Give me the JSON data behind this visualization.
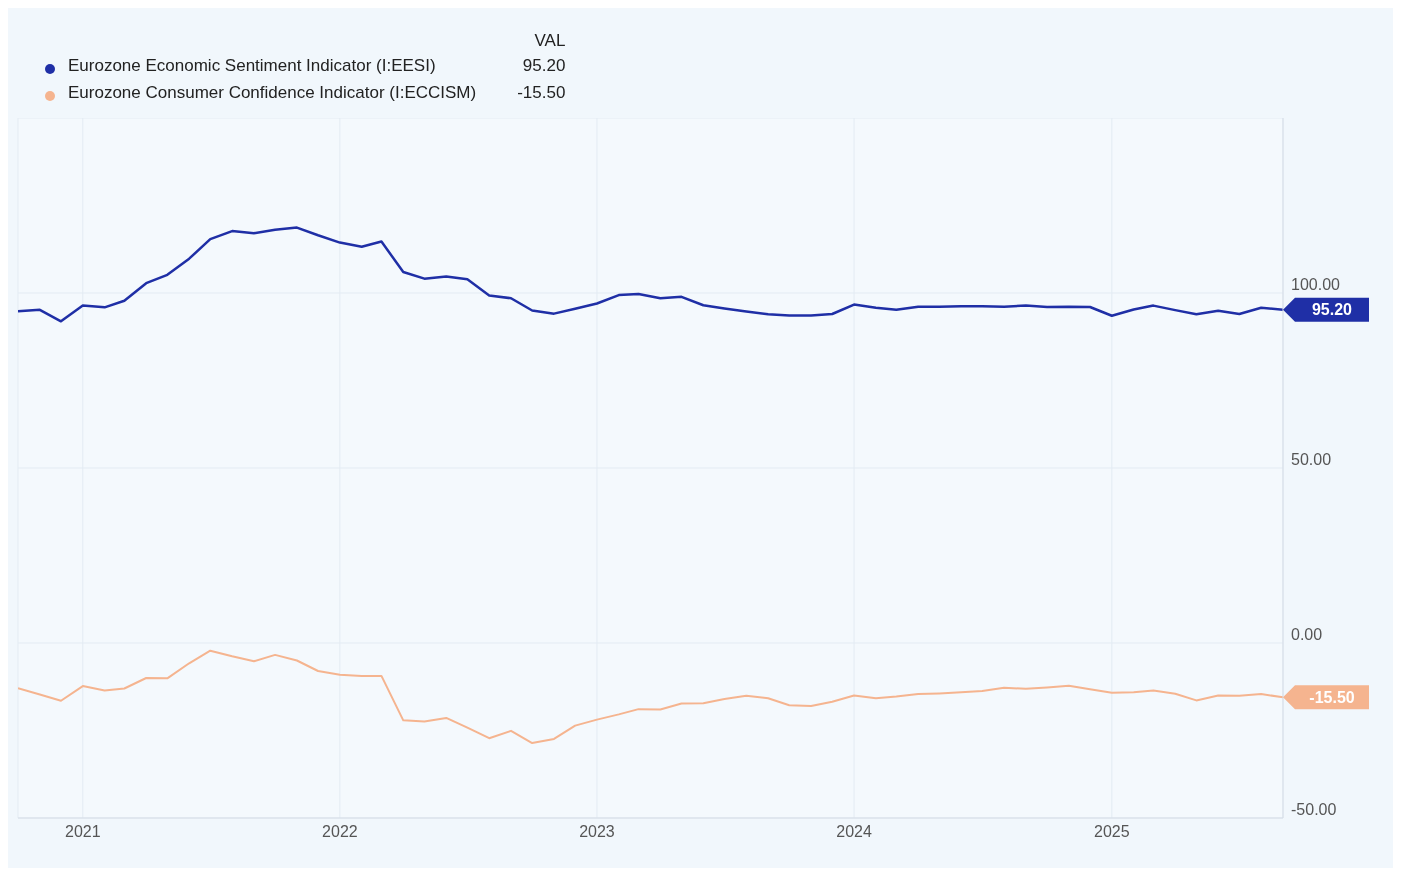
{
  "chart_data": {
    "type": "line",
    "x": [
      "2020-10",
      "2020-11",
      "2020-12",
      "2021-01",
      "2021-02",
      "2021-03",
      "2021-04",
      "2021-05",
      "2021-06",
      "2021-07",
      "2021-08",
      "2021-09",
      "2021-10",
      "2021-11",
      "2021-12",
      "2022-01",
      "2022-02",
      "2022-03",
      "2022-04",
      "2022-05",
      "2022-06",
      "2022-07",
      "2022-08",
      "2022-09",
      "2022-10",
      "2022-11",
      "2022-12",
      "2023-01",
      "2023-02",
      "2023-03",
      "2023-04",
      "2023-05",
      "2023-06",
      "2023-07",
      "2023-08",
      "2023-09",
      "2023-10",
      "2023-11",
      "2023-12",
      "2024-01",
      "2024-02",
      "2024-03",
      "2024-04",
      "2024-05",
      "2024-06",
      "2024-07",
      "2024-08",
      "2024-09",
      "2024-10",
      "2024-11",
      "2024-12",
      "2025-01",
      "2025-02",
      "2025-03",
      "2025-04",
      "2025-05",
      "2025-06",
      "2025-07",
      "2025-08",
      "2025-09"
    ],
    "series": [
      {
        "name": "Eurozone Economic Sentiment Indicator (I:EESI)",
        "color": "#1f2fa6",
        "values": [
          94.8,
          95.2,
          91.9,
          96.4,
          95.9,
          97.8,
          102.8,
          105.2,
          109.8,
          115.4,
          117.7,
          117.1,
          118.1,
          118.7,
          116.5,
          114.4,
          113.2,
          114.7,
          106.0,
          104.1,
          104.7,
          103.9,
          99.3,
          98.5,
          95.0,
          94.1,
          95.5,
          97.0,
          99.4,
          99.7,
          98.5,
          98.9,
          96.5,
          95.6,
          94.7,
          93.9,
          93.6,
          93.6,
          94.0,
          96.7,
          95.8,
          95.2,
          96.1,
          96.1,
          96.2,
          96.2,
          96.1,
          96.4,
          96.0,
          96.1,
          96.0,
          93.5,
          95.3,
          96.4,
          95.1,
          93.9,
          94.9,
          94.0,
          95.8,
          95.2
        ],
        "value_labels": [
          null,
          null,
          null,
          null,
          null,
          null,
          null,
          null,
          null,
          null,
          null,
          null,
          null,
          null,
          null,
          null,
          null,
          null,
          null,
          null,
          null,
          null,
          null,
          null,
          null,
          null,
          null,
          null,
          null,
          null,
          null,
          null,
          null,
          null,
          null,
          null,
          null,
          null,
          null,
          null,
          null,
          null,
          null,
          null,
          null,
          null,
          null,
          null,
          null,
          null,
          null,
          null,
          null,
          null,
          null,
          null,
          null,
          null,
          null,
          "95.20"
        ]
      },
      {
        "name": "Eurozone Consumer Confidence Indicator (I:ECCISM)",
        "color": "#f5b48f",
        "values": [
          -12.9,
          -14.7,
          -16.5,
          -12.3,
          -13.6,
          -13.0,
          -10.0,
          -10.1,
          -5.8,
          -2.2,
          -3.8,
          -5.2,
          -3.4,
          -5.0,
          -8.0,
          -9.1,
          -9.4,
          -9.4,
          -22.1,
          -22.4,
          -21.4,
          -24.2,
          -27.2,
          -25.1,
          -28.6,
          -27.4,
          -23.6,
          -21.9,
          -20.4,
          -18.9,
          -19.0,
          -17.3,
          -17.2,
          -16.0,
          -15.1,
          -15.8,
          -17.8,
          -18.0,
          -16.8,
          -15.0,
          -15.8,
          -15.3,
          -14.6,
          -14.4,
          -14.1,
          -13.7,
          -12.8,
          -13.1,
          -12.7,
          -12.2,
          -13.2,
          -14.2,
          -14.1,
          -13.6,
          -14.5,
          -16.4,
          -15.0,
          -15.1,
          -14.6,
          -15.5
        ],
        "value_labels": [
          null,
          null,
          null,
          null,
          null,
          null,
          null,
          null,
          null,
          null,
          null,
          null,
          null,
          null,
          null,
          null,
          null,
          null,
          null,
          null,
          null,
          null,
          null,
          null,
          null,
          null,
          null,
          null,
          null,
          null,
          null,
          null,
          null,
          null,
          null,
          null,
          null,
          null,
          null,
          null,
          null,
          null,
          null,
          null,
          null,
          null,
          null,
          null,
          null,
          null,
          null,
          null,
          null,
          null,
          null,
          null,
          null,
          null,
          null,
          "-15.50"
        ]
      }
    ],
    "legend_title": "VAL",
    "legend": "top left",
    "xlim": [
      "2020-10",
      "2025-09"
    ],
    "xticks": [
      "2021",
      "2022",
      "2023",
      "2024",
      "2025"
    ],
    "ylim": [
      -50,
      150
    ],
    "yticks": [
      {
        "value": -50,
        "label": "-50.00"
      },
      {
        "value": 0,
        "label": "0.00"
      },
      {
        "value": 50,
        "label": "50.00"
      },
      {
        "value": 100,
        "label": "100.00"
      },
      {
        "value": 150,
        "label": null
      }
    ],
    "grid": true,
    "marker": "none",
    "line_style": "solid"
  }
}
